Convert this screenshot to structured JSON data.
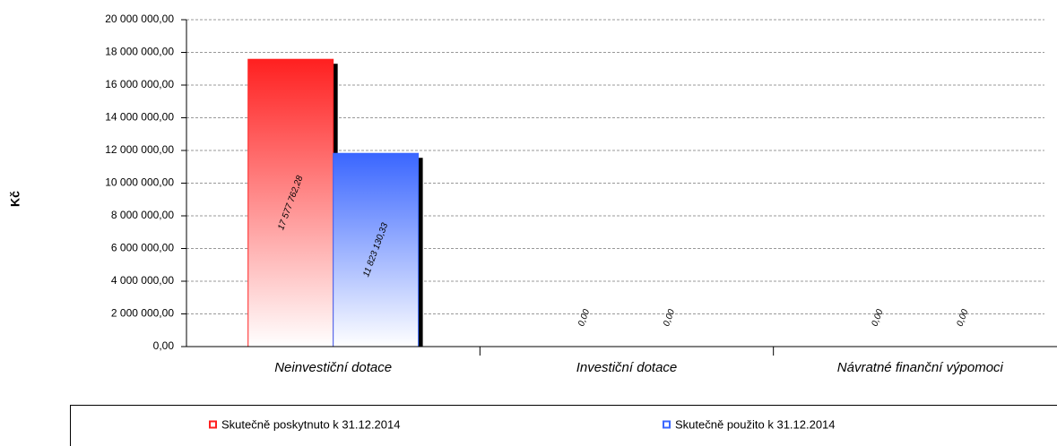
{
  "chart_data": {
    "type": "bar",
    "ylabel": "Kč",
    "categories": [
      "Neinvestiční dotace",
      "Investiční dotace",
      "Návratné finanční výpomoci"
    ],
    "series": [
      {
        "name": "Skutečně poskytnuto k 31.12.2014",
        "color": "#ff2020",
        "values": [
          17577762.28,
          0,
          0
        ],
        "value_labels": [
          "17 577 762,28",
          "0,00",
          "0,00"
        ]
      },
      {
        "name": "Skutečně použito k 31.12.2014",
        "color": "#3a66ff",
        "values": [
          11823130.33,
          0,
          0
        ],
        "value_labels": [
          "11 823 130,33",
          "0,00",
          "0,00"
        ]
      }
    ],
    "ylim": [
      0,
      20000000
    ],
    "yticks": [
      {
        "value": 0,
        "label": "0,00"
      },
      {
        "value": 2000000,
        "label": "2 000 000,00"
      },
      {
        "value": 4000000,
        "label": "4 000 000,00"
      },
      {
        "value": 6000000,
        "label": "6 000 000,00"
      },
      {
        "value": 8000000,
        "label": "8 000 000,00"
      },
      {
        "value": 10000000,
        "label": "10 000 000,00"
      },
      {
        "value": 12000000,
        "label": "12 000 000,00"
      },
      {
        "value": 14000000,
        "label": "14 000 000,00"
      },
      {
        "value": 16000000,
        "label": "16 000 000,00"
      },
      {
        "value": 18000000,
        "label": "18 000 000,00"
      },
      {
        "value": 20000000,
        "label": "20 000 000,00"
      }
    ],
    "grid": true,
    "legend": "bottom"
  }
}
